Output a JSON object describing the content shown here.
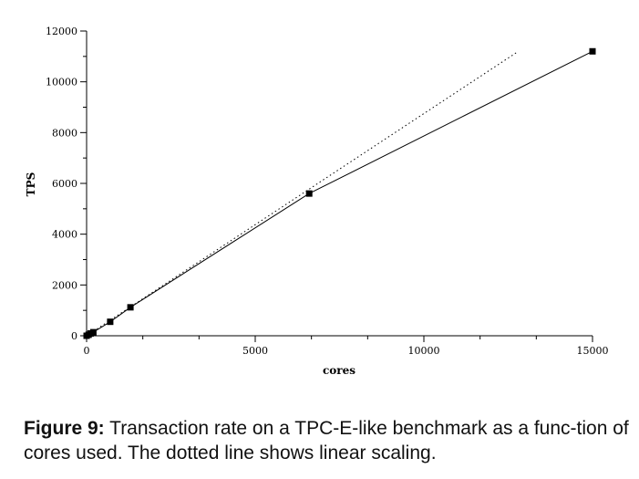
{
  "chart_data": {
    "type": "line",
    "xlabel": "cores",
    "ylabel": "TPS",
    "xlim": [
      0,
      15000
    ],
    "ylim": [
      0,
      12000
    ],
    "xticks": [
      0,
      5000,
      10000,
      15000
    ],
    "yticks": [
      0,
      2000,
      4000,
      6000,
      8000,
      10000,
      12000
    ],
    "xtick_labels": [
      "0",
      "5000",
      "10000",
      "15000"
    ],
    "ytick_labels": [
      "0",
      "2000",
      "4000",
      "6000",
      "8000",
      "10000",
      "12000"
    ],
    "grid": false,
    "series": [
      {
        "style": "solid",
        "marker": "square",
        "x": [
          0,
          60,
          120,
          200,
          700,
          1300,
          6600,
          15000
        ],
        "y": [
          0,
          40,
          90,
          140,
          550,
          1120,
          5600,
          11200
        ]
      },
      {
        "style": "dotted",
        "marker": "none",
        "x": [
          0,
          12800
        ],
        "y": [
          0,
          11200
        ]
      }
    ]
  },
  "caption": {
    "label": "Figure 9:",
    "text": " Transaction rate on a TPC-E-like benchmark as a func-tion of cores used. The dotted line shows linear scaling."
  }
}
